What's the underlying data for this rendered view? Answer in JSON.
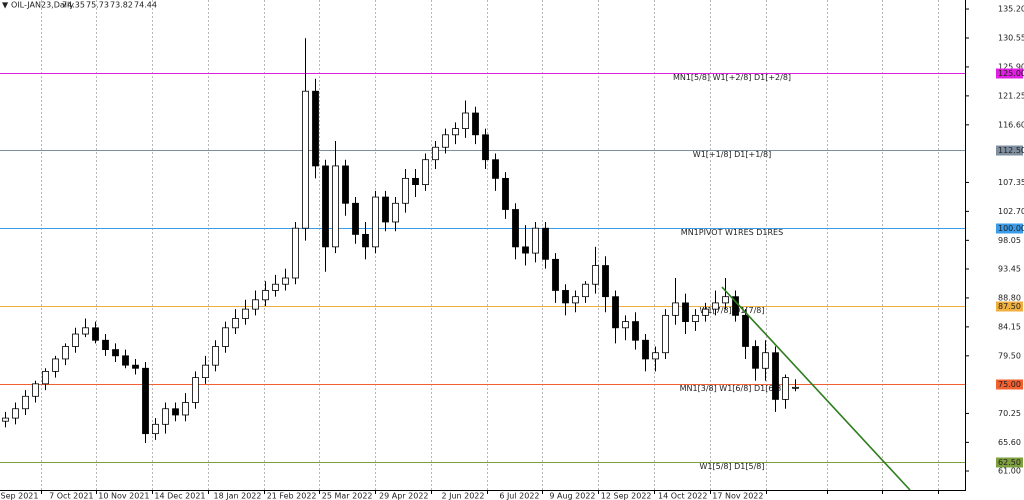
{
  "header": {
    "symbol": "OIL-JAN23,Daily",
    "ohlc": [
      74.35,
      75.73,
      73.82,
      74.44
    ]
  },
  "chart_data": {
    "type": "candlestick",
    "ylim": [
      57.95,
      136.65
    ],
    "yticks": [
      {
        "value": 135.2,
        "label": "135.20"
      },
      130.55,
      {
        "value": 125.9,
        "label": "125.90"
      },
      121.25,
      {
        "value": 116.6,
        "label": "116.60"
      },
      107.35,
      {
        "value": 102.7,
        "label": "102.70"
      },
      98.05,
      93.45,
      {
        "value": 88.8,
        "label": "88.80"
      },
      84.15,
      {
        "value": 79.5,
        "label": "79.50"
      },
      70.25,
      {
        "value": 65.6,
        "label": "65.60"
      },
      {
        "value": 61,
        "label": "61.00"
      }
    ],
    "xlim": [
      -0.5,
      96
    ],
    "xticks": [
      {
        "value": 3.6,
        "label": "3 Sep 2021"
      },
      {
        "value": 9.1,
        "label": "7 Oct 2021"
      },
      {
        "value": 14.7,
        "label": "10 Nov 2021"
      },
      {
        "value": 20.3,
        "label": "14 Dec 2021"
      },
      {
        "value": 25.9,
        "label": "18 Jan 2022"
      },
      {
        "value": 31.4,
        "label": "21 Feb 2022"
      },
      {
        "value": 37,
        "label": "25 Mar 2022"
      },
      {
        "value": 42.6,
        "label": "29 Apr 2022"
      },
      {
        "value": 48.2,
        "label": "2 Jun 2022"
      },
      {
        "value": 53.7,
        "label": "6 Jul 2022"
      },
      {
        "value": 59.3,
        "label": "9 Aug 2022"
      },
      {
        "value": 64.9,
        "label": "12 Sep 2022"
      },
      {
        "value": 70.5,
        "label": "14 Oct 2022"
      },
      {
        "value": 76.1,
        "label": "17 Nov 2022"
      },
      {
        "value": 82.2,
        "label": null
      },
      {
        "value": 87.7,
        "label": null
      },
      {
        "value": 93.3,
        "label": null
      }
    ],
    "grid": true,
    "up_color": "#ffffff",
    "down_color": "#000000",
    "open": [
      69,
      69.5,
      71,
      73,
      75,
      77,
      79,
      81,
      83,
      84,
      82,
      80.5,
      79.5,
      78,
      77.5,
      67,
      68.5,
      71,
      70,
      72,
      76,
      78,
      81,
      84,
      85.5,
      87,
      88.5,
      90,
      91,
      92,
      100,
      122,
      110,
      97,
      110,
      104,
      99,
      97,
      105,
      101,
      104,
      108,
      107,
      111,
      113,
      115,
      116,
      118.5,
      115,
      111,
      108,
      103,
      97,
      96,
      100,
      95,
      90,
      88,
      89,
      91,
      94,
      89,
      84,
      85,
      82,
      79,
      80,
      86,
      88,
      85,
      86,
      87,
      88,
      89,
      86,
      81,
      77.5,
      80,
      72.5,
      74.35
    ],
    "high": [
      70.5,
      72,
      74,
      75.5,
      77.5,
      79.5,
      81.5,
      84,
      85.5,
      85,
      83,
      81.5,
      80.5,
      79,
      78.5,
      69.5,
      72,
      72,
      73.5,
      77,
      79.5,
      82,
      85,
      87,
      88.5,
      90,
      91.5,
      92.5,
      93.5,
      101,
      130.5,
      124,
      111,
      114,
      111,
      105,
      101,
      106,
      106,
      105,
      109.5,
      109.5,
      112,
      114,
      116,
      117,
      120.5,
      119.5,
      116,
      112,
      109,
      104,
      100.5,
      101,
      101,
      96,
      91,
      90,
      91.5,
      97,
      95.5,
      90,
      86,
      86.5,
      83,
      81,
      87,
      92,
      89.5,
      87,
      88,
      90,
      92,
      90,
      87,
      82,
      82,
      81,
      76.5,
      75.73
    ],
    "low": [
      68,
      68.5,
      70,
      72,
      74,
      76,
      78,
      80,
      82.5,
      81.5,
      79.5,
      78.5,
      77.5,
      76.5,
      65.5,
      66,
      67,
      69,
      69,
      71,
      75,
      77,
      80,
      83,
      84.5,
      86,
      87.5,
      89,
      90,
      91,
      98,
      108,
      93,
      96,
      102,
      97.5,
      95,
      96,
      99.5,
      99.5,
      102.5,
      105,
      106,
      109.5,
      112,
      113.5,
      114.5,
      113.5,
      109.5,
      106,
      101.5,
      95,
      94,
      94.5,
      93.5,
      88,
      86,
      86.5,
      88,
      89.5,
      86.5,
      81.5,
      82,
      80.5,
      77,
      77,
      79,
      84.5,
      83,
      83.5,
      85,
      86,
      87,
      85,
      79,
      75.5,
      75.5,
      70.5,
      71,
      73.82
    ],
    "close": [
      69.5,
      71,
      73,
      75,
      77,
      79,
      81,
      83,
      84,
      82,
      80.5,
      79.5,
      78,
      77.5,
      67,
      68.5,
      71,
      70,
      72,
      76,
      78,
      81,
      84,
      85.5,
      87,
      88.5,
      90,
      91,
      92,
      100,
      122,
      110,
      97,
      110,
      104,
      99,
      97,
      105,
      101,
      104,
      108,
      107,
      111,
      113,
      115,
      116,
      118.5,
      115,
      111,
      108,
      103,
      97,
      96,
      100,
      95,
      90,
      88,
      89,
      91,
      94,
      89,
      84,
      85,
      82,
      79,
      80,
      86,
      88,
      85,
      86,
      87,
      88,
      89,
      86,
      81,
      77.5,
      80,
      72.5,
      76,
      74.44
    ],
    "levels": [
      {
        "value": 125,
        "label": "125.00",
        "text": "MN1[5/8] W1[+2/8] D1[+2/8]",
        "color": "#e020e0"
      },
      {
        "value": 112.5,
        "label": "112.50",
        "text": "W1[+1/8] D1[+1/8]",
        "color": "#7f8fa0"
      },
      {
        "value": 100,
        "label": "100.00",
        "text": "MN1PIVOT W1RES D1RES",
        "color": "#3a9be8"
      },
      {
        "value": 87.5,
        "label": "87.50",
        "text": "W1[7/8] D1[7/8]",
        "color": "#f0b040"
      },
      {
        "value": 75,
        "label": "75.00",
        "text": "MN1[3/8] W1[6/8] D1[6/8]",
        "color": "#f06030"
      },
      {
        "value": 62.5,
        "label": "62.50",
        "text": "W1[5/8] D1[5/8]",
        "color": "#7fa040"
      }
    ],
    "trendline": {
      "x": [
        71.7,
        90.5
      ],
      "y": [
        90.55,
        57.95
      ],
      "color": "#2e7d1e"
    }
  }
}
